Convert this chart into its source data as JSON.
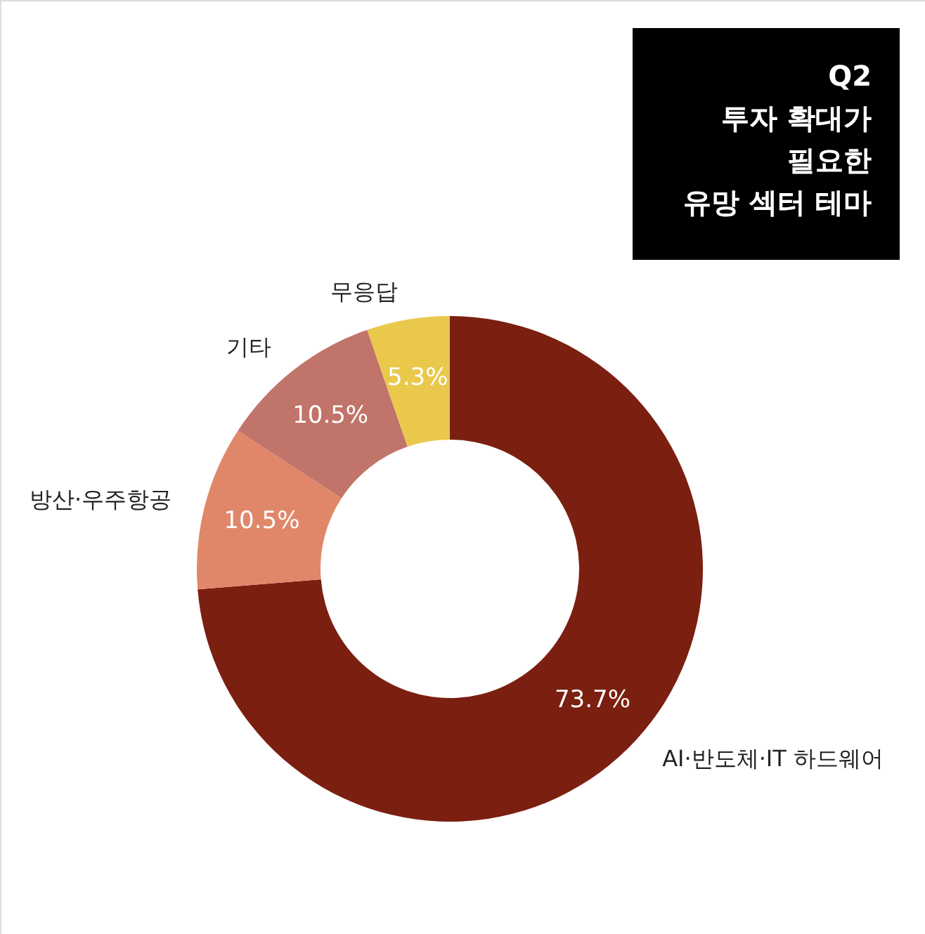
{
  "chart_data": {
    "type": "donut",
    "title": "Q2\n투자 확대가\n필요한\n유망 섹터 테마",
    "categories": [
      "AI·반도체·IT 하드웨어",
      "방산·우주항공",
      "기타",
      "무응답"
    ],
    "values": [
      73.7,
      10.5,
      10.5,
      5.3
    ],
    "colors": [
      "#7b1f10",
      "#e0876a",
      "#c1746a",
      "#e9c84c"
    ],
    "value_labels": [
      "73.7%",
      "10.5%",
      "10.5%",
      "5.3%"
    ]
  }
}
